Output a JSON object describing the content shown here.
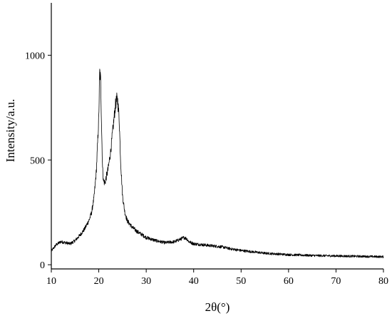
{
  "chart_data": {
    "type": "line",
    "title": "",
    "xlabel": "2θ(°)",
    "ylabel": "Intensity/a.u.",
    "xlim": [
      10,
      80
    ],
    "ylim": [
      -20,
      1250
    ],
    "x_ticks": [
      10,
      20,
      30,
      40,
      50,
      60,
      70,
      80
    ],
    "y_ticks": [
      0,
      500,
      1000
    ],
    "grid": false,
    "legend": "none",
    "line_color": "#000000",
    "series": [
      {
        "x": [
          10,
          11,
          12,
          13,
          14,
          15,
          16,
          17,
          18,
          18.5,
          19,
          19.5,
          20,
          20.2,
          20.4,
          20.6,
          20.8,
          21,
          21.3,
          21.6,
          22,
          22.5,
          23,
          23.5,
          23.8,
          24,
          24.3,
          24.6,
          25,
          25.5,
          26,
          27,
          28,
          29,
          30,
          32,
          34,
          36,
          37,
          38,
          38.5,
          39,
          40,
          42,
          44,
          46,
          48,
          50,
          55,
          60,
          65,
          70,
          75,
          80
        ],
        "y": [
          65,
          95,
          110,
          105,
          100,
          115,
          140,
          170,
          215,
          250,
          320,
          450,
          700,
          920,
          880,
          650,
          460,
          400,
          390,
          420,
          460,
          540,
          650,
          760,
          790,
          780,
          700,
          500,
          330,
          250,
          210,
          180,
          160,
          145,
          130,
          115,
          105,
          110,
          120,
          130,
          125,
          110,
          100,
          95,
          90,
          85,
          75,
          68,
          55,
          48,
          44,
          42,
          40,
          38
        ]
      }
    ]
  }
}
